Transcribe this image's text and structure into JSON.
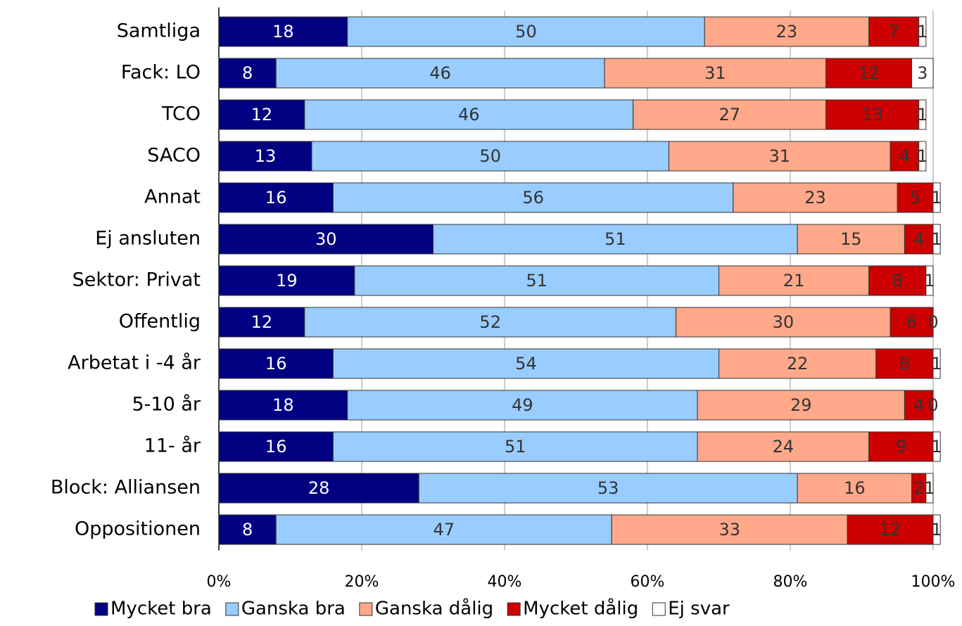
{
  "chart_data": {
    "type": "stacked_barh",
    "categories": [
      "Samtliga",
      "Fack: LO",
      "TCO",
      "SACO",
      "Annat",
      "Ej ansluten",
      "Sektor: Privat",
      "Offentlig",
      "Arbetat i -4 år",
      "5-10 år",
      "11- år",
      "Block: Alliansen",
      "Oppositionen"
    ],
    "series": [
      {
        "name": "Mycket bra",
        "color": "#000080",
        "values": [
          18,
          8,
          12,
          13,
          16,
          30,
          19,
          12,
          16,
          18,
          16,
          28,
          8
        ]
      },
      {
        "name": "Ganska bra",
        "color": "#99ccff",
        "values": [
          50,
          46,
          46,
          50,
          56,
          51,
          51,
          52,
          54,
          49,
          51,
          53,
          47
        ]
      },
      {
        "name": "Ganska dålig",
        "color": "#ffa88a",
        "values": [
          23,
          31,
          27,
          31,
          23,
          15,
          21,
          30,
          22,
          29,
          24,
          16,
          33
        ]
      },
      {
        "name": "Mycket dålig",
        "color": "#cc0000",
        "values": [
          7,
          12,
          13,
          4,
          5,
          4,
          8,
          6,
          8,
          4,
          9,
          2,
          12
        ]
      },
      {
        "name": "Ej svar",
        "color": "#ffffff",
        "values": [
          1,
          3,
          1,
          1,
          1,
          1,
          1,
          0,
          1,
          0,
          1,
          1,
          1
        ]
      }
    ],
    "xlim": [
      0,
      100
    ],
    "xticks": [
      {
        "value": 0,
        "label": "0%"
      },
      {
        "value": 20,
        "label": "20%"
      },
      {
        "value": 40,
        "label": "40%"
      },
      {
        "value": 60,
        "label": "60%"
      },
      {
        "value": 80,
        "label": "80%"
      },
      {
        "value": 100,
        "label": "100%"
      }
    ],
    "grid": true,
    "legend": "bottom"
  }
}
